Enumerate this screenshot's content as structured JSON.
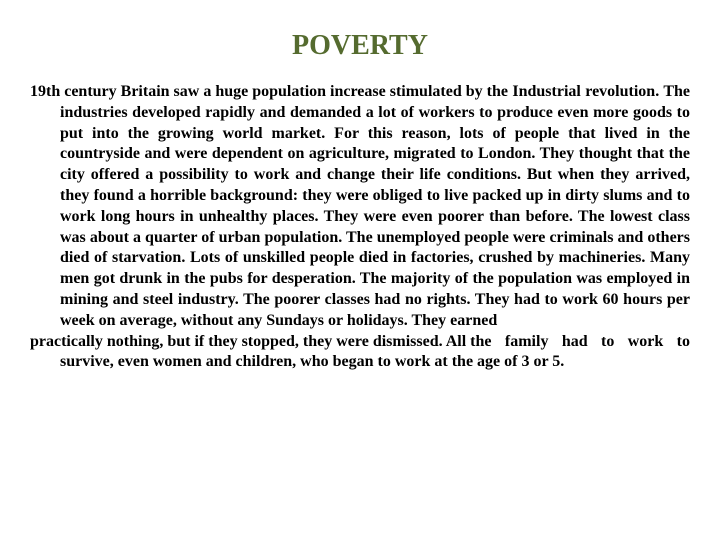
{
  "title": {
    "text": "POVERTY",
    "color": "#556b2f",
    "fontsize": 28
  },
  "body": {
    "color": "#000000",
    "fontsize": 16,
    "lineheight": 1.3,
    "para1_start": "19th century Britain saw a huge population increase stimulated by the",
    "para1_rest": "Industrial revolution. The industries developed rapidly and demanded a lot of workers to produce even more goods to put into the growing world market. For this reason, lots of people that lived in the countryside and were dependent on agriculture, migrated to London. They thought that the city offered a possibility to work and change their life conditions. But when they arrived, they found a horrible background: they were obliged to live packed up in dirty slums and to work long hours in unhealthy places. They were even poorer than before. The lowest class was about a quarter of urban population. The unemployed people were criminals and others died of starvation. Lots of unskilled people died in factories, crushed by machineries. Many men got drunk in the pubs for desperation. The majority of the population was employed in mining and steel industry. The poorer classes had no rights. They had to work 60 hours per week on average, without any Sundays or holidays. They earned",
    "para2_start": "practically nothing, but if they stopped, they were dismissed. All the",
    "para2_rest": "family had to work to survive, even women and children, who began to work at the age of 3 or 5."
  }
}
